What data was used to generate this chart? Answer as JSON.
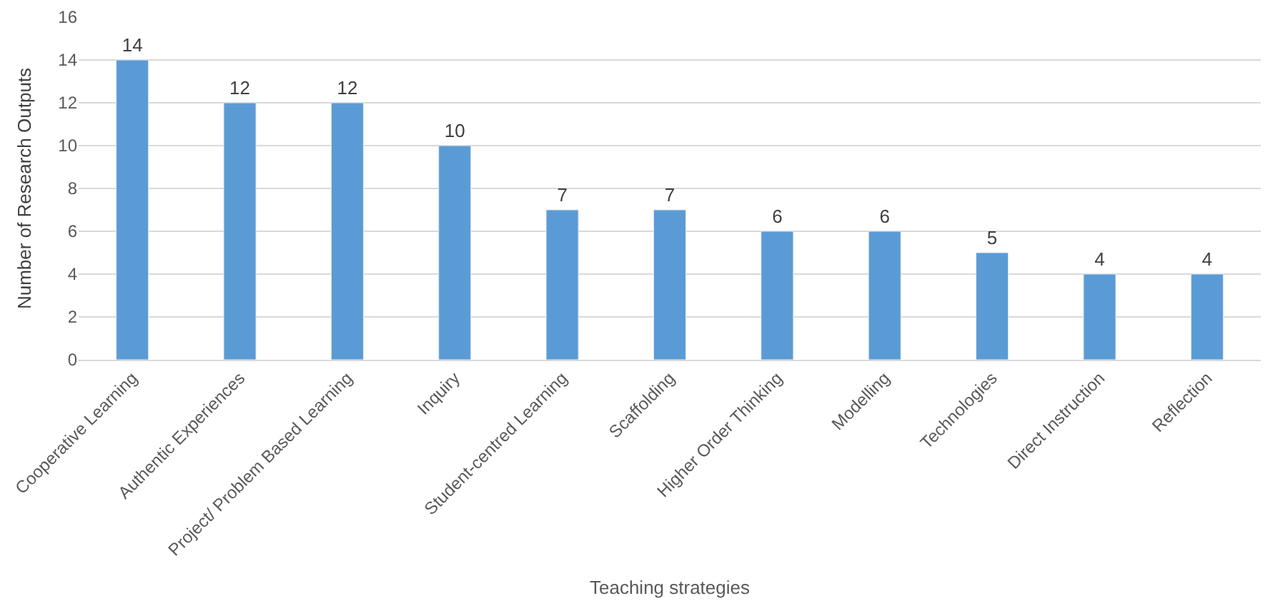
{
  "chart_data": {
    "type": "bar",
    "xlabel": "Teaching strategies",
    "ylabel": "Number of Research Outputs",
    "categories": [
      "Cooperative Learning",
      "Authentic Experiences",
      "Project/ Problem Based Learning",
      "Inquiry",
      "Student-centred Learning",
      "Scaffolding",
      "Higher Order Thinking",
      "Modelling",
      "Technologies",
      "Direct Instruction",
      "Reflection"
    ],
    "values": [
      14,
      12,
      12,
      10,
      7,
      7,
      6,
      6,
      5,
      4,
      4
    ],
    "color": "#5b9bd5",
    "ylim": [
      0,
      16
    ],
    "yticks": [
      0,
      2,
      4,
      6,
      8,
      10,
      12,
      14,
      16
    ],
    "grid": "y",
    "data_labels": true,
    "legend": false
  }
}
